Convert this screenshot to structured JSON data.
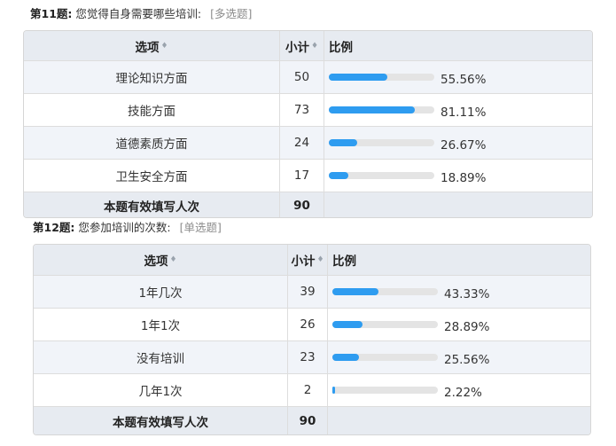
{
  "q11": {
    "number": "第11题:",
    "text": "您觉得自身需要哪些培训:",
    "type": "[多选题]",
    "header": {
      "option": "选项",
      "count": "小计",
      "ratio": "比例",
      "sort_icon": "sort-icon"
    },
    "rows": [
      {
        "option": "理论知识方面",
        "count": "50",
        "percent": "55.56%",
        "fraction": 0.5556
      },
      {
        "option": "技能方面",
        "count": "73",
        "percent": "81.11%",
        "fraction": 0.8111
      },
      {
        "option": "道德素质方面",
        "count": "24",
        "percent": "26.67%",
        "fraction": 0.2667
      },
      {
        "option": "卫生安全方面",
        "count": "17",
        "percent": "18.89%",
        "fraction": 0.1889
      }
    ],
    "footer": {
      "label": "本题有效填写人次",
      "count": "90"
    }
  },
  "q12": {
    "number": "第12题:",
    "text": "您参加培训的次数:",
    "type": "[单选题]",
    "header": {
      "option": "选项",
      "count": "小计",
      "ratio": "比例",
      "sort_icon": "sort-icon"
    },
    "rows": [
      {
        "option": "1年几次",
        "count": "39",
        "percent": "43.33%",
        "fraction": 0.4333
      },
      {
        "option": "1年1次",
        "count": "26",
        "percent": "28.89%",
        "fraction": 0.2889
      },
      {
        "option": "没有培训",
        "count": "23",
        "percent": "25.56%",
        "fraction": 0.2556
      },
      {
        "option": "几年1次",
        "count": "2",
        "percent": "2.22%",
        "fraction": 0.0222
      }
    ],
    "footer": {
      "label": "本题有效填写人次",
      "count": "90"
    }
  },
  "colors": {
    "bar": "#2e9cf0",
    "track": "#e4e4e4",
    "header_bg": "#e7ebf1",
    "alt_row_bg": "#f1f4f9"
  }
}
